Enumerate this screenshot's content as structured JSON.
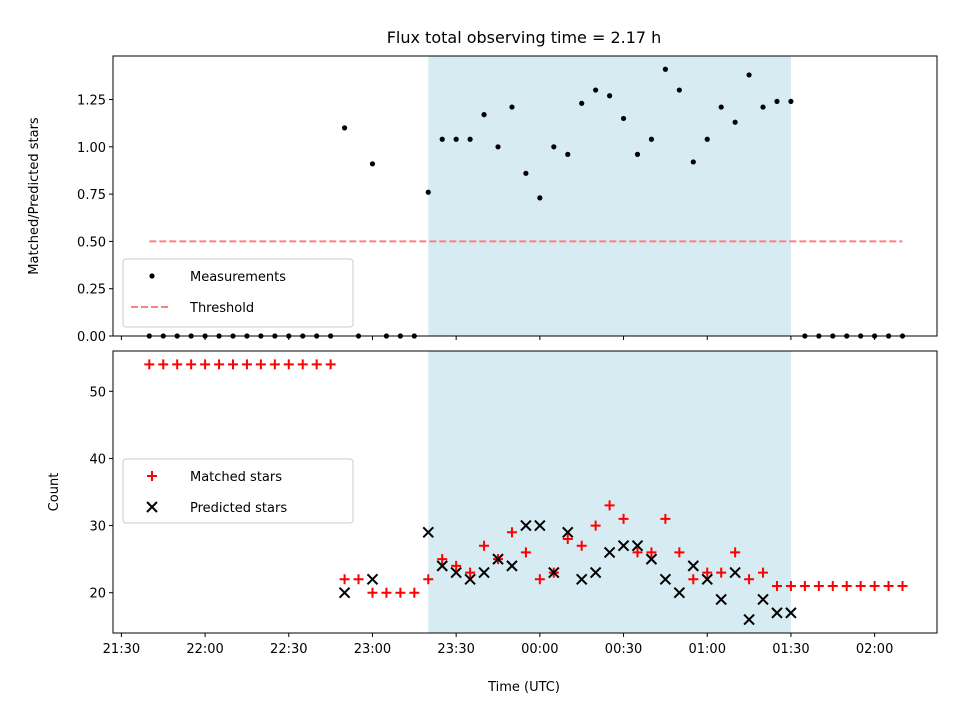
{
  "chart_data": {
    "title": "Flux total observing time = 2.17 h",
    "xlabel": "Time (UTC)",
    "x_ticks": [
      "21:30",
      "22:00",
      "22:30",
      "23:00",
      "23:30",
      "00:00",
      "00:30",
      "01:00",
      "01:30",
      "02:00"
    ],
    "highlight_span": {
      "start": "23:20",
      "end": "01:30",
      "color": "#add8e6"
    },
    "panels": [
      {
        "type": "scatter",
        "ylabel": "Matched/Predicted stars",
        "ylim": [
          0,
          1.48
        ],
        "y_ticks": [
          "0.00",
          "0.25",
          "0.50",
          "0.75",
          "1.00",
          "1.25"
        ],
        "legend": "lower-left",
        "series": [
          {
            "name": "Measurements",
            "marker": "dot",
            "color": "#000000",
            "points": [
              [
                "21:40",
                0
              ],
              [
                "21:45",
                0
              ],
              [
                "21:50",
                0
              ],
              [
                "21:55",
                0
              ],
              [
                "22:00",
                0
              ],
              [
                "22:05",
                0
              ],
              [
                "22:10",
                0
              ],
              [
                "22:15",
                0
              ],
              [
                "22:20",
                0
              ],
              [
                "22:25",
                0
              ],
              [
                "22:30",
                0
              ],
              [
                "22:35",
                0
              ],
              [
                "22:40",
                0
              ],
              [
                "22:45",
                0
              ],
              [
                "22:50",
                1.1
              ],
              [
                "22:55",
                0
              ],
              [
                "23:00",
                0.91
              ],
              [
                "23:05",
                0
              ],
              [
                "23:10",
                0
              ],
              [
                "23:15",
                0
              ],
              [
                "23:20",
                0.76
              ],
              [
                "23:25",
                1.04
              ],
              [
                "23:30",
                1.04
              ],
              [
                "23:35",
                1.04
              ],
              [
                "23:40",
                1.17
              ],
              [
                "23:45",
                1.0
              ],
              [
                "23:50",
                1.21
              ],
              [
                "23:55",
                0.86
              ],
              [
                "00:00",
                0.73
              ],
              [
                "00:05",
                1.0
              ],
              [
                "00:10",
                0.96
              ],
              [
                "00:15",
                1.23
              ],
              [
                "00:20",
                1.3
              ],
              [
                "00:25",
                1.27
              ],
              [
                "00:30",
                1.15
              ],
              [
                "00:35",
                0.96
              ],
              [
                "00:40",
                1.04
              ],
              [
                "00:45",
                1.41
              ],
              [
                "00:50",
                1.3
              ],
              [
                "00:55",
                0.92
              ],
              [
                "01:00",
                1.04
              ],
              [
                "01:05",
                1.21
              ],
              [
                "01:10",
                1.13
              ],
              [
                "01:15",
                1.38
              ],
              [
                "01:20",
                1.21
              ],
              [
                "01:25",
                1.24
              ],
              [
                "01:30",
                1.24
              ],
              [
                "01:35",
                0
              ],
              [
                "01:40",
                0
              ],
              [
                "01:45",
                0
              ],
              [
                "01:50",
                0
              ],
              [
                "01:55",
                0
              ],
              [
                "02:00",
                0
              ],
              [
                "02:05",
                0
              ],
              [
                "02:10",
                0
              ]
            ]
          },
          {
            "name": "Threshold",
            "marker": "dashed-line",
            "color": "#ff7f7f",
            "points": [
              [
                "21:40",
                0.5
              ],
              [
                "02:10",
                0.5
              ]
            ]
          }
        ]
      },
      {
        "type": "scatter",
        "ylabel": "Count",
        "ylim": [
          14,
          56
        ],
        "y_ticks": [
          "20",
          "30",
          "40",
          "50"
        ],
        "legend": "center-left",
        "series": [
          {
            "name": "Matched stars",
            "marker": "plus",
            "color": "#ff0000",
            "points": [
              [
                "21:40",
                54
              ],
              [
                "21:45",
                54
              ],
              [
                "21:50",
                54
              ],
              [
                "21:55",
                54
              ],
              [
                "22:00",
                54
              ],
              [
                "22:05",
                54
              ],
              [
                "22:10",
                54
              ],
              [
                "22:15",
                54
              ],
              [
                "22:20",
                54
              ],
              [
                "22:25",
                54
              ],
              [
                "22:30",
                54
              ],
              [
                "22:35",
                54
              ],
              [
                "22:40",
                54
              ],
              [
                "22:45",
                54
              ],
              [
                "22:50",
                22
              ],
              [
                "22:55",
                22
              ],
              [
                "23:00",
                20
              ],
              [
                "23:05",
                20
              ],
              [
                "23:10",
                20
              ],
              [
                "23:15",
                20
              ],
              [
                "23:20",
                22
              ],
              [
                "23:25",
                25
              ],
              [
                "23:30",
                24
              ],
              [
                "23:35",
                23
              ],
              [
                "23:40",
                27
              ],
              [
                "23:45",
                25
              ],
              [
                "23:50",
                29
              ],
              [
                "23:55",
                26
              ],
              [
                "00:00",
                22
              ],
              [
                "00:05",
                23
              ],
              [
                "00:10",
                28
              ],
              [
                "00:15",
                27
              ],
              [
                "00:20",
                30
              ],
              [
                "00:25",
                33
              ],
              [
                "00:30",
                31
              ],
              [
                "00:35",
                26
              ],
              [
                "00:40",
                26
              ],
              [
                "00:45",
                31
              ],
              [
                "00:50",
                26
              ],
              [
                "00:55",
                22
              ],
              [
                "01:00",
                23
              ],
              [
                "01:05",
                23
              ],
              [
                "01:10",
                26
              ],
              [
                "01:15",
                22
              ],
              [
                "01:20",
                23
              ],
              [
                "01:25",
                21
              ],
              [
                "01:30",
                21
              ],
              [
                "01:35",
                21
              ],
              [
                "01:40",
                21
              ],
              [
                "01:45",
                21
              ],
              [
                "01:50",
                21
              ],
              [
                "01:55",
                21
              ],
              [
                "02:00",
                21
              ],
              [
                "02:05",
                21
              ],
              [
                "02:10",
                21
              ]
            ]
          },
          {
            "name": "Predicted stars",
            "marker": "x",
            "color": "#000000",
            "points": [
              [
                "22:50",
                20
              ],
              [
                "23:00",
                22
              ],
              [
                "23:20",
                29
              ],
              [
                "23:25",
                24
              ],
              [
                "23:30",
                23
              ],
              [
                "23:35",
                22
              ],
              [
                "23:40",
                23
              ],
              [
                "23:45",
                25
              ],
              [
                "23:50",
                24
              ],
              [
                "23:55",
                30
              ],
              [
                "00:00",
                30
              ],
              [
                "00:05",
                23
              ],
              [
                "00:10",
                29
              ],
              [
                "00:15",
                22
              ],
              [
                "00:20",
                23
              ],
              [
                "00:25",
                26
              ],
              [
                "00:30",
                27
              ],
              [
                "00:35",
                27
              ],
              [
                "00:40",
                25
              ],
              [
                "00:45",
                22
              ],
              [
                "00:50",
                20
              ],
              [
                "00:55",
                24
              ],
              [
                "01:00",
                22
              ],
              [
                "01:05",
                19
              ],
              [
                "01:10",
                23
              ],
              [
                "01:15",
                16
              ],
              [
                "01:20",
                19
              ],
              [
                "01:25",
                17
              ],
              [
                "01:30",
                17
              ]
            ]
          }
        ]
      }
    ]
  }
}
